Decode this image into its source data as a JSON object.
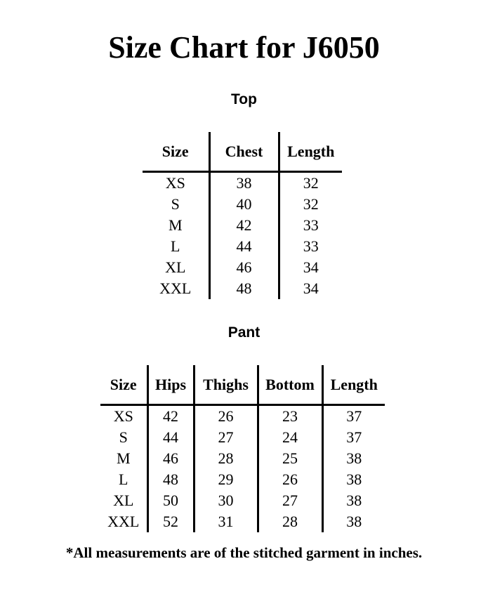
{
  "title": "Size Chart for J6050",
  "top": {
    "heading": "Top",
    "columns": [
      "Size",
      "Chest",
      "Length"
    ],
    "rows": [
      [
        "XS",
        "38",
        "32"
      ],
      [
        "S",
        "40",
        "32"
      ],
      [
        "M",
        "42",
        "33"
      ],
      [
        "L",
        "44",
        "33"
      ],
      [
        "XL",
        "46",
        "34"
      ],
      [
        "XXL",
        "48",
        "34"
      ]
    ]
  },
  "pant": {
    "heading": "Pant",
    "columns": [
      "Size",
      "Hips",
      "Thighs",
      "Bottom",
      "Length"
    ],
    "rows": [
      [
        "XS",
        "42",
        "26",
        "23",
        "37"
      ],
      [
        "S",
        "44",
        "27",
        "24",
        "37"
      ],
      [
        "M",
        "46",
        "28",
        "25",
        "38"
      ],
      [
        "L",
        "48",
        "29",
        "26",
        "38"
      ],
      [
        "XL",
        "50",
        "30",
        "27",
        "38"
      ],
      [
        "XXL",
        "52",
        "31",
        "28",
        "38"
      ]
    ]
  },
  "footnote": "*All measurements are of the stitched garment in inches."
}
